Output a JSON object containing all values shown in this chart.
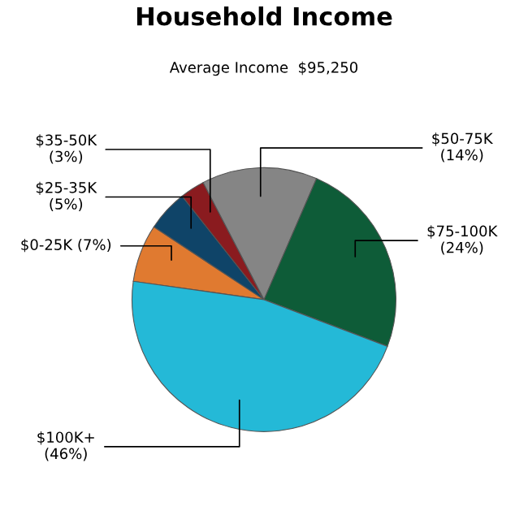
{
  "chart_data": {
    "type": "pie",
    "title": "Household Income",
    "subtitle": "Average Income  $95,250",
    "categories": [
      "$0-25K",
      "$25-35K",
      "$35-50K",
      "$50-75K",
      "$75-100K",
      "$100K+"
    ],
    "values": [
      7,
      5,
      3,
      14,
      24,
      46
    ],
    "value_labels": [
      "(7%)",
      "(5%)",
      "(3%)",
      "(14%)",
      "(24%)",
      "(46%)"
    ],
    "colors": [
      "#e07a30",
      "#0f4468",
      "#8a1b1f",
      "#858585",
      "#0e5c38",
      "#24b9d7"
    ]
  }
}
